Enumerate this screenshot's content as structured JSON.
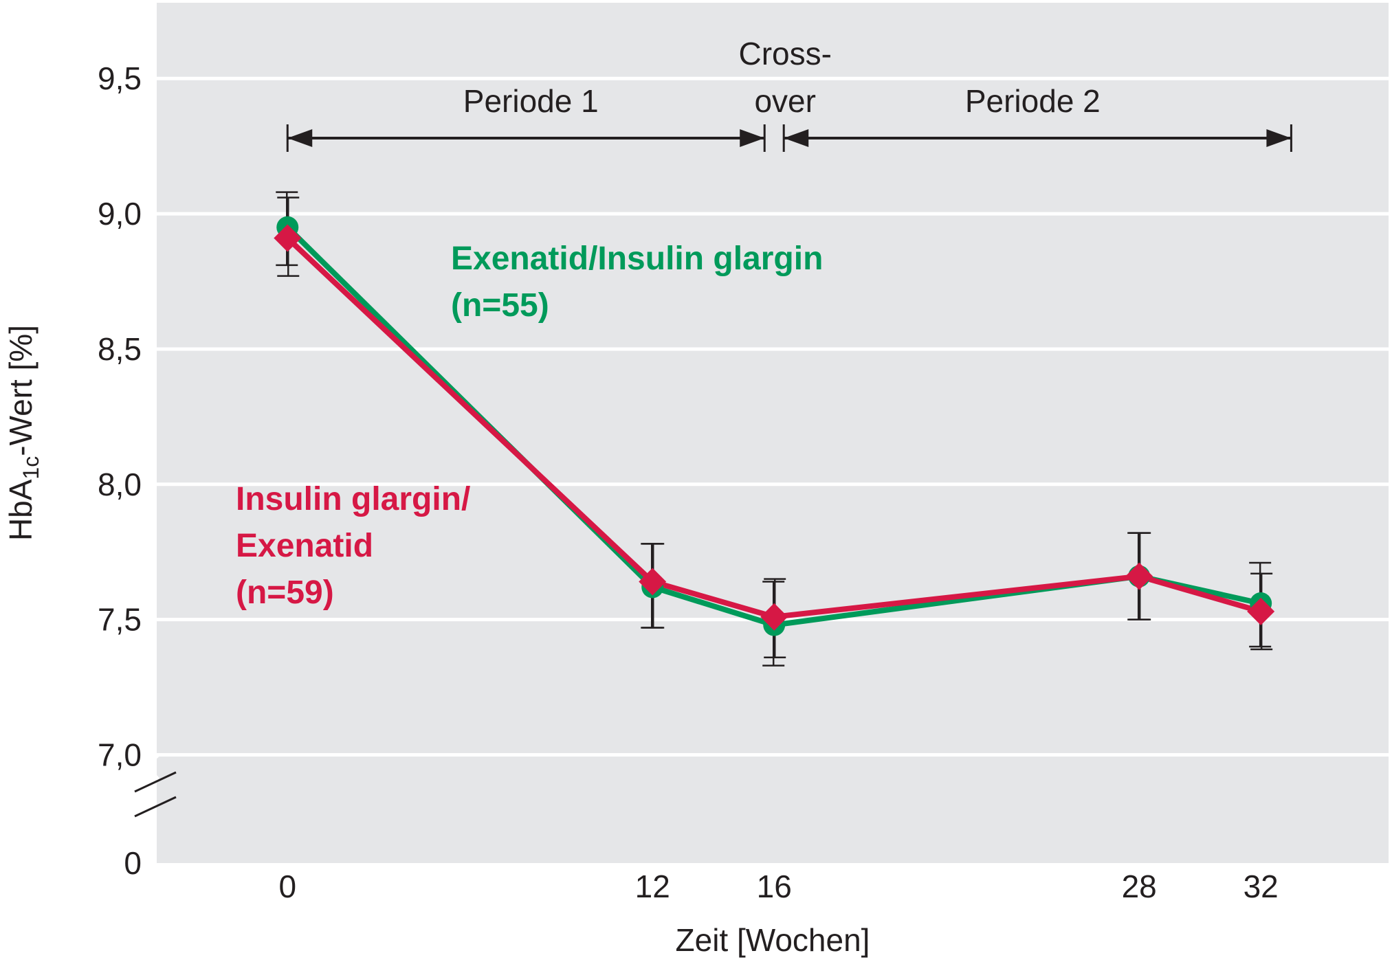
{
  "chart_data": {
    "type": "line",
    "xlabel": "Zeit [Wochen]",
    "ylabel": {
      "prefix": "HbA",
      "sub": "1c",
      "suffix": "-Wert [%]"
    },
    "x_ticks": [
      "0",
      "12",
      "16",
      "28",
      "32"
    ],
    "y_ticks": [
      "0",
      "7,0",
      "7,5",
      "8,0",
      "8,5",
      "9,0",
      "9,5"
    ],
    "y_break": true,
    "xlim": [
      -4.3,
      36.2
    ],
    "ylim": [
      6.6,
      9.78
    ],
    "grid": true,
    "periods": [
      {
        "label": "Periode 1",
        "from": 0,
        "to": 16
      },
      {
        "label": "Periode 2",
        "from": 16,
        "to": 33
      }
    ],
    "crossover_label": [
      "Cross-",
      "over"
    ],
    "series": [
      {
        "label_lines": [
          "Exenatid/Insulin glargin",
          "(n=55)"
        ],
        "color": "#009a5a",
        "marker": "circle",
        "x": [
          0,
          12,
          16,
          28,
          32
        ],
        "y": [
          8.95,
          7.62,
          7.48,
          7.66,
          7.56
        ],
        "err_low": [
          8.81,
          7.47,
          7.33,
          7.5,
          7.4
        ],
        "err_high": [
          9.08,
          7.78,
          7.64,
          7.82,
          7.71
        ]
      },
      {
        "label_lines": [
          "Insulin glargin/",
          "Exenatid",
          "(n=59)"
        ],
        "color": "#d61845",
        "marker": "diamond",
        "x": [
          0,
          12,
          16,
          28,
          32
        ],
        "y": [
          8.91,
          7.64,
          7.51,
          7.66,
          7.53
        ],
        "err_low": [
          8.77,
          7.47,
          7.36,
          7.5,
          7.39
        ],
        "err_high": [
          9.06,
          7.78,
          7.65,
          7.82,
          7.67
        ]
      }
    ]
  }
}
